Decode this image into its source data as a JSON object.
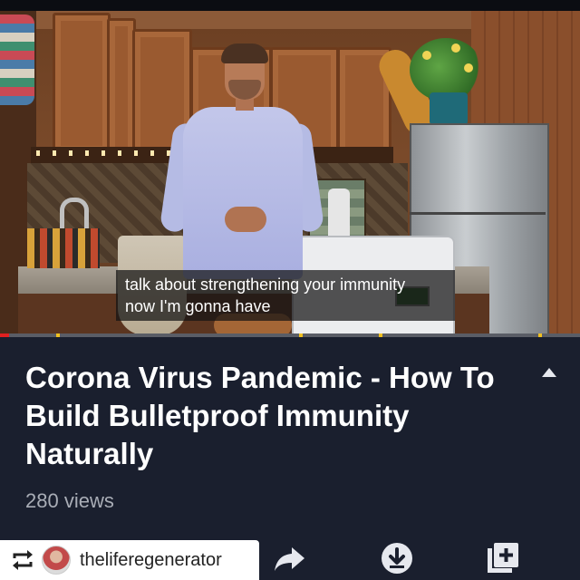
{
  "video": {
    "caption_line1": "talk about strengthening your immunity",
    "caption_line2": "now I'm gonna have",
    "progress_fraction": 0.015
  },
  "info": {
    "title": "Corona Virus Pandemic - How To Build Bulletproof Immunity Naturally",
    "views": "280 views"
  },
  "actions": [
    "share-icon",
    "download-icon",
    "add-to-playlist-icon"
  ],
  "repost": {
    "icon": "repost-icon",
    "handle": "theliferegenerator"
  },
  "colors": {
    "background": "#1a1f2e",
    "progress": "#e02020",
    "text": "#ffffff",
    "muted": "#a9adb6"
  }
}
